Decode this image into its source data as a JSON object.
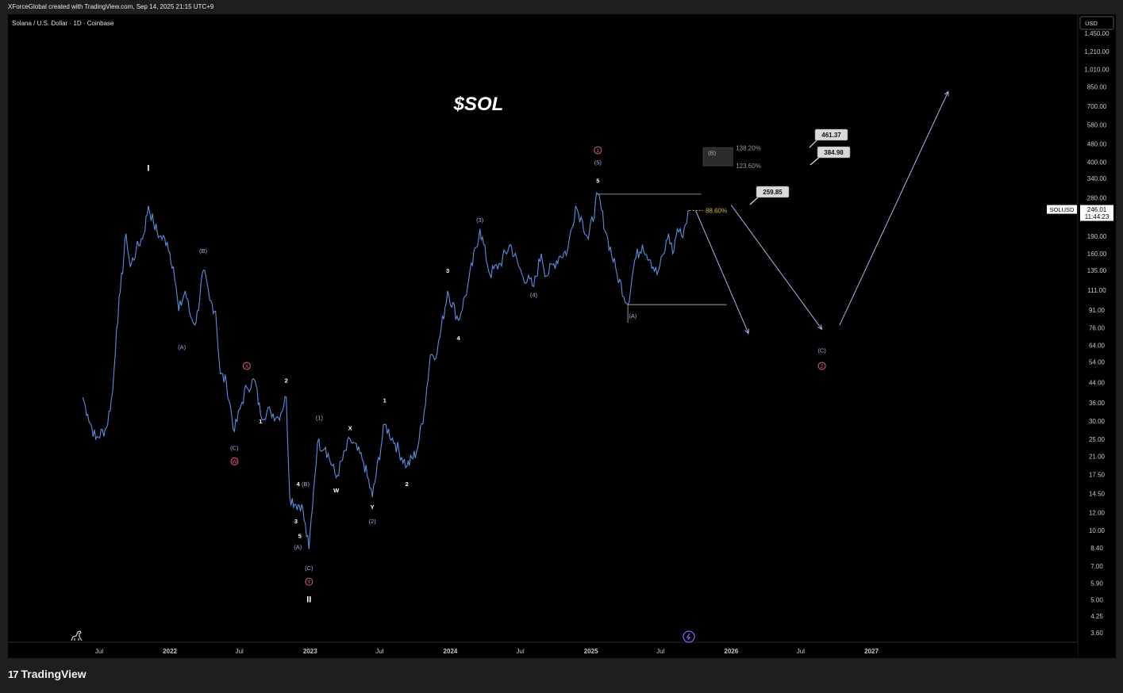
{
  "header": {
    "credit": "XForceGlobal created with TradingView.com, Sep 14, 2025 21:15 UTC+9"
  },
  "footer": {
    "brand": "TradingView",
    "logo_glyph": "17"
  },
  "colors": {
    "price": "#5b8fe0",
    "wave": "#b8a5e8",
    "circle_wave": "#e06080",
    "white": "#ffffff",
    "fib_gold": "#d4b84a"
  },
  "chart_data": {
    "type": "line",
    "title": "$SOL",
    "subtitle": "Solana / U.S. Dollar · 1D · Coinbase",
    "ticker": "SOLUSD",
    "last_price": "246.01",
    "countdown": "11:44:23",
    "currency": "USD",
    "y_scale": "log",
    "ylim": [
      3.3,
      1600
    ],
    "y_ticks": [
      "1,450.00",
      "1,210.00",
      "1,010.00",
      "850.00",
      "700.00",
      "580.00",
      "480.00",
      "400.00",
      "340.00",
      "280.00",
      "190.00",
      "160.00",
      "135.00",
      "111.00",
      "91.00",
      "76.00",
      "64.00",
      "54.00",
      "44.00",
      "36.00",
      "30.00",
      "25.00",
      "21.00",
      "17.50",
      "14.50",
      "12.00",
      "10.00",
      "8.40",
      "7.00",
      "5.90",
      "5.00",
      "4.25",
      "3.60"
    ],
    "x_ticks": [
      "Jul",
      "2022",
      "Jul",
      "2023",
      "Jul",
      "2024",
      "Jul",
      "2025",
      "Jul",
      "2026",
      "Jul",
      "2027"
    ],
    "x_tick_dates": [
      "2021-07-01",
      "2022-01-01",
      "2022-07-01",
      "2023-01-01",
      "2023-07-01",
      "2024-01-01",
      "2024-07-01",
      "2025-01-01",
      "2025-07-01",
      "2026-01-01",
      "2026-07-01",
      "2027-01-01"
    ],
    "xlim": [
      "2021-05-10",
      "2028-05-01"
    ],
    "series": [
      {
        "values": [
          [
            "2021-05-19",
            38
          ],
          [
            "2021-06-01",
            32
          ],
          [
            "2021-06-22",
            25
          ],
          [
            "2021-07-20",
            28
          ],
          [
            "2021-08-05",
            40
          ],
          [
            "2021-08-15",
            75
          ],
          [
            "2021-08-25",
            110
          ],
          [
            "2021-09-09",
            195
          ],
          [
            "2021-09-20",
            140
          ],
          [
            "2021-10-05",
            165
          ],
          [
            "2021-10-25",
            195
          ],
          [
            "2021-11-06",
            258
          ],
          [
            "2021-11-20",
            215
          ],
          [
            "2021-12-05",
            190
          ],
          [
            "2021-12-25",
            180
          ],
          [
            "2022-01-10",
            140
          ],
          [
            "2022-01-24",
            90
          ],
          [
            "2022-02-10",
            110
          ],
          [
            "2022-02-24",
            85
          ],
          [
            "2022-03-10",
            80
          ],
          [
            "2022-03-29",
            135
          ],
          [
            "2022-04-15",
            100
          ],
          [
            "2022-04-30",
            90
          ],
          [
            "2022-05-12",
            48
          ],
          [
            "2022-05-28",
            44
          ],
          [
            "2022-06-18",
            27
          ],
          [
            "2022-07-05",
            35
          ],
          [
            "2022-07-20",
            42
          ],
          [
            "2022-08-10",
            45
          ],
          [
            "2022-08-25",
            32
          ],
          [
            "2022-09-20",
            33
          ],
          [
            "2022-10-10",
            31
          ],
          [
            "2022-10-31",
            38
          ],
          [
            "2022-11-09",
            14
          ],
          [
            "2022-11-25",
            13
          ],
          [
            "2022-12-10",
            13
          ],
          [
            "2022-12-29",
            8.3
          ],
          [
            "2023-01-10",
            15
          ],
          [
            "2023-01-20",
            24
          ],
          [
            "2023-02-10",
            23
          ],
          [
            "2023-03-10",
            17
          ],
          [
            "2023-04-15",
            25
          ],
          [
            "2023-05-20",
            20
          ],
          [
            "2023-06-12",
            14
          ],
          [
            "2023-07-14",
            29
          ],
          [
            "2023-08-10",
            24
          ],
          [
            "2023-09-10",
            19
          ],
          [
            "2023-10-05",
            22
          ],
          [
            "2023-10-25",
            33
          ],
          [
            "2023-11-10",
            58
          ],
          [
            "2023-11-28",
            60
          ],
          [
            "2023-12-25",
            110
          ],
          [
            "2024-01-22",
            82
          ],
          [
            "2024-02-15",
            115
          ],
          [
            "2024-03-18",
            205
          ],
          [
            "2024-04-13",
            130
          ],
          [
            "2024-05-10",
            145
          ],
          [
            "2024-06-05",
            175
          ],
          [
            "2024-07-05",
            130
          ],
          [
            "2024-08-05",
            115
          ],
          [
            "2024-08-25",
            160
          ],
          [
            "2024-09-06",
            128
          ],
          [
            "2024-10-10",
            155
          ],
          [
            "2024-11-01",
            165
          ],
          [
            "2024-11-22",
            258
          ],
          [
            "2024-12-10",
            220
          ],
          [
            "2024-12-25",
            185
          ],
          [
            "2025-01-19",
            290
          ],
          [
            "2025-02-10",
            195
          ],
          [
            "2025-03-10",
            130
          ],
          [
            "2025-04-07",
            96
          ],
          [
            "2025-04-25",
            150
          ],
          [
            "2025-05-15",
            175
          ],
          [
            "2025-06-05",
            150
          ],
          [
            "2025-06-22",
            130
          ],
          [
            "2025-07-10",
            160
          ],
          [
            "2025-07-22",
            195
          ],
          [
            "2025-08-02",
            160
          ],
          [
            "2025-08-14",
            205
          ],
          [
            "2025-08-25",
            190
          ],
          [
            "2025-09-14",
            246
          ]
        ]
      }
    ],
    "projection": [
      {
        "segment": "(B)-to-(C)",
        "points": [
          [
            "2025-10-01",
            245
          ],
          [
            "2026-02-15",
            72
          ]
        ]
      },
      {
        "segment": "to-(C)",
        "points": [
          [
            "2026-01-01",
            259.85
          ],
          [
            "2026-08-25",
            75
          ]
        ]
      },
      {
        "segment": "wave-3-up",
        "points": [
          [
            "2026-10-10",
            78
          ],
          [
            "2027-07-20",
            810
          ]
        ]
      }
    ],
    "levels": [
      {
        "label": "88.60%",
        "price": 246
      },
      {
        "label": "123.60%",
        "price": 385
      },
      {
        "label": "138.20%",
        "price": 461
      }
    ],
    "price_tags": [
      "461.37",
      "384.98",
      "259.85"
    ],
    "annotations": [
      {
        "text": "I",
        "d": "2021-11-06",
        "p": 375,
        "c": "white"
      },
      {
        "text": "II",
        "d": "2022-12-29",
        "p": 5.0,
        "c": "white"
      },
      {
        "text": "(A)",
        "d": "2022-02-01",
        "p": 63,
        "c": "wave"
      },
      {
        "text": "(B)",
        "d": "2022-03-29",
        "p": 165,
        "c": "wave"
      },
      {
        "text": "(C)",
        "d": "2022-06-18",
        "p": 23,
        "c": "wave"
      },
      {
        "text": "W",
        "d": "2022-06-18",
        "p": 20,
        "c": "circle_wave"
      },
      {
        "text": "X",
        "d": "2022-07-20",
        "p": 52,
        "c": "circle_wave"
      },
      {
        "text": "1",
        "d": "2022-08-25",
        "p": 30,
        "c": "white"
      },
      {
        "text": "2",
        "d": "2022-10-31",
        "p": 45,
        "c": "white"
      },
      {
        "text": "3",
        "d": "2022-11-25",
        "p": 11,
        "c": "white"
      },
      {
        "text": "4",
        "d": "2022-12-01",
        "p": 16,
        "c": "white"
      },
      {
        "text": "5",
        "d": "2022-12-05",
        "p": 9.5,
        "c": "white"
      },
      {
        "text": "(A)",
        "d": "2022-11-30",
        "p": 8.5,
        "c": "wave"
      },
      {
        "text": "(B)",
        "d": "2022-12-20",
        "p": 16,
        "c": "wave"
      },
      {
        "text": "(C)",
        "d": "2022-12-29",
        "p": 6.9,
        "c": "wave"
      },
      {
        "text": "Y",
        "d": "2022-12-29",
        "p": 6.0,
        "c": "circle_wave"
      },
      {
        "text": "(1)",
        "d": "2023-01-25",
        "p": 31,
        "c": "wave"
      },
      {
        "text": "W",
        "d": "2023-03-10",
        "p": 15,
        "c": "white"
      },
      {
        "text": "X",
        "d": "2023-04-15",
        "p": 28,
        "c": "white"
      },
      {
        "text": "Y",
        "d": "2023-06-12",
        "p": 12.7,
        "c": "white"
      },
      {
        "text": "(2)",
        "d": "2023-06-12",
        "p": 11,
        "c": "wave"
      },
      {
        "text": "1",
        "d": "2023-07-14",
        "p": 37,
        "c": "white"
      },
      {
        "text": "2",
        "d": "2023-09-10",
        "p": 16,
        "c": "white"
      },
      {
        "text": "3",
        "d": "2023-12-25",
        "p": 135,
        "c": "white"
      },
      {
        "text": "4",
        "d": "2024-01-22",
        "p": 69,
        "c": "white"
      },
      {
        "text": "(3)",
        "d": "2024-03-18",
        "p": 225,
        "c": "wave"
      },
      {
        "text": "(4)",
        "d": "2024-08-05",
        "p": 106,
        "c": "wave"
      },
      {
        "text": "1",
        "d": "2025-01-19",
        "p": 450,
        "c": "circle_wave"
      },
      {
        "text": "(5)",
        "d": "2025-01-19",
        "p": 400,
        "c": "wave"
      },
      {
        "text": "5",
        "d": "2025-01-19",
        "p": 333,
        "c": "white"
      },
      {
        "text": "(A)",
        "d": "2025-04-20",
        "p": 86,
        "c": "wave"
      },
      {
        "text": "(B)",
        "d": "2025-11-12",
        "p": 440,
        "c": "wave"
      },
      {
        "text": "(C)",
        "d": "2026-08-25",
        "p": 61,
        "c": "wave"
      },
      {
        "text": "2",
        "d": "2026-08-25",
        "p": 52,
        "c": "circle_wave"
      }
    ],
    "grid": false,
    "legend": "none"
  }
}
